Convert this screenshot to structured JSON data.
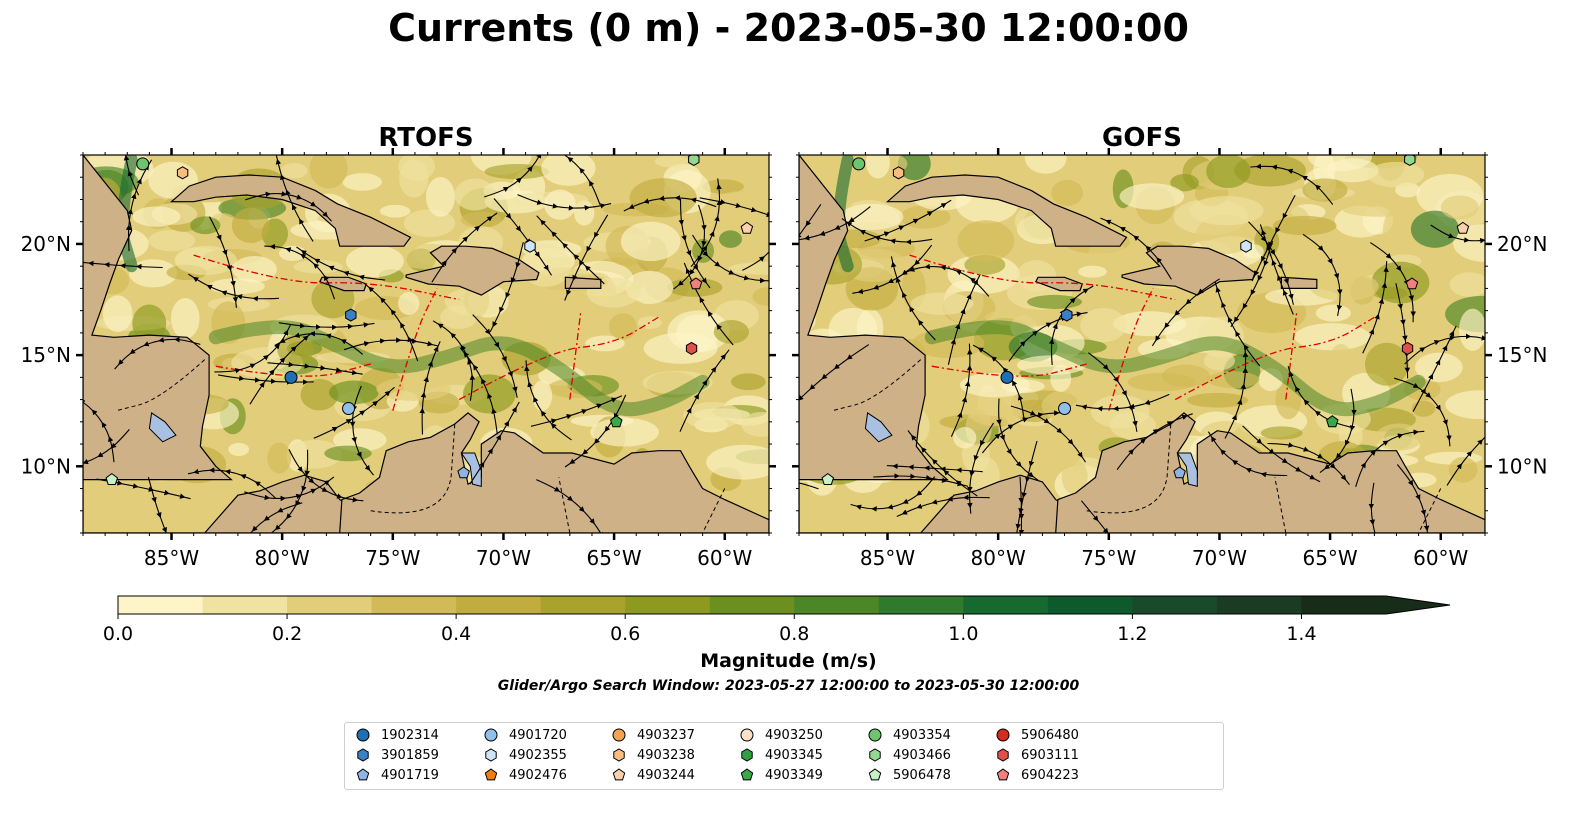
{
  "title": "Currents (0 m) - 2023-05-30 12:00:00",
  "chart_data": {
    "type": "map",
    "variable": "surface current magnitude with streamlines",
    "extent": {
      "lon": [
        -89,
        -58
      ],
      "lat": [
        7,
        24
      ]
    },
    "lon_ticks": [
      -85,
      -80,
      -75,
      -70,
      -65,
      -60
    ],
    "lon_tick_labels": [
      "85°W",
      "80°W",
      "75°W",
      "70°W",
      "65°W",
      "60°W"
    ],
    "lat_ticks": [
      10,
      15,
      20
    ],
    "lat_tick_labels": [
      "10°N",
      "15°N",
      "20°N"
    ],
    "panels": [
      {
        "title": "RTOFS"
      },
      {
        "title": "GOFS"
      }
    ],
    "colorbar": {
      "label": "Magnitude (m/s)",
      "range": [
        0,
        1.5
      ],
      "extend": "max",
      "ticks": [
        0.0,
        0.2,
        0.4,
        0.6,
        0.8,
        1.0,
        1.2,
        1.4
      ],
      "tick_labels": [
        "0.0",
        "0.2",
        "0.4",
        "0.6",
        "0.8",
        "1.0",
        "1.2",
        "1.4"
      ],
      "colors": [
        "#fdf5c8",
        "#f0e2a0",
        "#e2cd7a",
        "#d3ba58",
        "#c1ac40",
        "#a9a22c",
        "#8e9a1f",
        "#6b9020",
        "#4c8626",
        "#2f7a2c",
        "#16692f",
        "#0e5a2c",
        "#194a29",
        "#1b3b22",
        "#172c19"
      ]
    },
    "search_window_note": "Glider/Argo Search Window: 2023-05-27 12:00:00 to 2023-05-30 12:00:00",
    "floats": [
      {
        "id": "1902314",
        "color": "#1f6fb4",
        "marker": "circle",
        "lon": -79.6,
        "lat": 14.0
      },
      {
        "id": "3901859",
        "color": "#3b7fc4",
        "marker": "hexagon",
        "lon": -76.9,
        "lat": 16.8
      },
      {
        "id": "4901719",
        "color": "#8fb3e3",
        "marker": "pentagon",
        "lon": -71.8,
        "lat": 9.7
      },
      {
        "id": "4901720",
        "color": "#8fc0ea",
        "marker": "circle",
        "lon": -77.0,
        "lat": 12.6
      },
      {
        "id": "4902355",
        "color": "#cfe4f7",
        "marker": "hexagon",
        "lon": -68.8,
        "lat": 19.9
      },
      {
        "id": "4902476",
        "color": "#f07f12",
        "marker": "pentagon",
        "lon": null,
        "lat": null
      },
      {
        "id": "4903237",
        "color": "#f5a34e",
        "marker": "circle",
        "lon": null,
        "lat": null
      },
      {
        "id": "4903238",
        "color": "#f9bd82",
        "marker": "hexagon",
        "lon": -84.5,
        "lat": 23.2
      },
      {
        "id": "4903244",
        "color": "#fbd1ac",
        "marker": "pentagon",
        "lon": -59.0,
        "lat": 20.7
      },
      {
        "id": "4903250",
        "color": "#fde0c8",
        "marker": "circle",
        "lon": null,
        "lat": null
      },
      {
        "id": "4903345",
        "color": "#2ea043",
        "marker": "hexagon",
        "lon": null,
        "lat": null
      },
      {
        "id": "4903349",
        "color": "#3ba84a",
        "marker": "pentagon",
        "lon": -64.9,
        "lat": 12.0
      },
      {
        "id": "4903354",
        "color": "#6fc46e",
        "marker": "circle",
        "lon": -86.3,
        "lat": 23.6
      },
      {
        "id": "4903466",
        "color": "#93d891",
        "marker": "hexagon",
        "lon": -61.4,
        "lat": 23.8
      },
      {
        "id": "5906478",
        "color": "#c9efc4",
        "marker": "pentagon",
        "lon": -87.7,
        "lat": 9.4
      },
      {
        "id": "5906480",
        "color": "#d42a20",
        "marker": "circle",
        "lon": null,
        "lat": null
      },
      {
        "id": "6903111",
        "color": "#e0504a",
        "marker": "hexagon",
        "lon": -61.5,
        "lat": 15.3
      },
      {
        "id": "6904223",
        "color": "#f08080",
        "marker": "pentagon",
        "lon": -61.3,
        "lat": 18.2
      }
    ],
    "land_color": "#cfb187",
    "lake_color": "#a9c0e0",
    "grid": "none"
  }
}
